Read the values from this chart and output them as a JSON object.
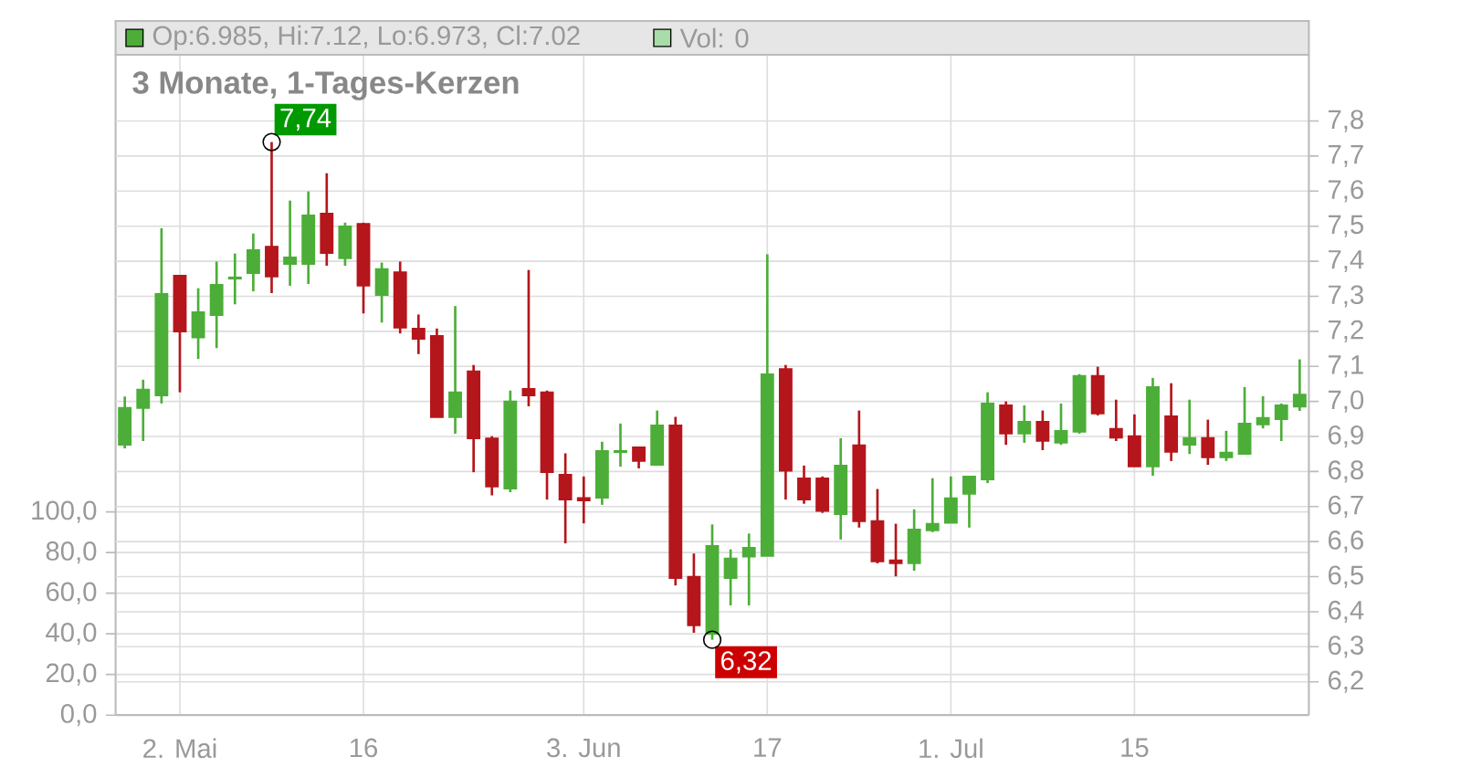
{
  "chart_data": {
    "type": "candlestick",
    "title": "3 Monate, 1-Tages-Kerzen",
    "annotations": [
      "Op:6.985, Hi:7.12, Lo:6.973, Cl:7.02",
      "Vol: 0",
      "7,74",
      "6,32"
    ],
    "categories": [
      null,
      null,
      null,
      "2. Mai",
      null,
      null,
      null,
      null,
      null,
      null,
      null,
      null,
      null,
      "16",
      null,
      null,
      null,
      null,
      null,
      null,
      null,
      null,
      null,
      null,
      null,
      "3. Jun",
      null,
      null,
      null,
      null,
      null,
      null,
      null,
      null,
      null,
      "17",
      null,
      null,
      null,
      null,
      null,
      null,
      null,
      null,
      null,
      "1. Jul",
      null,
      null,
      null,
      null,
      null,
      null,
      null,
      null,
      null,
      "15",
      null,
      null,
      null,
      null,
      null,
      null,
      null,
      null,
      null
    ],
    "ohlc": [
      [
        6.876,
        7.014,
        6.866,
        6.982
      ],
      [
        6.981,
        7.062,
        6.887,
        7.034
      ],
      [
        7.017,
        7.494,
        6.994,
        7.307
      ],
      [
        7.359,
        7.359,
        7.026,
        7.199
      ],
      [
        7.182,
        7.323,
        7.121,
        7.255
      ],
      [
        7.246,
        7.399,
        7.152,
        7.333
      ],
      [
        7.35,
        7.422,
        7.277,
        7.354
      ],
      [
        7.366,
        7.479,
        7.314,
        7.432
      ],
      [
        7.442,
        7.74,
        7.309,
        7.356
      ],
      [
        7.392,
        7.573,
        7.33,
        7.411
      ],
      [
        7.392,
        7.599,
        7.335,
        7.531
      ],
      [
        7.536,
        7.651,
        7.387,
        7.423
      ],
      [
        7.408,
        7.51,
        7.387,
        7.5
      ],
      [
        7.507,
        7.51,
        7.251,
        7.33
      ],
      [
        7.303,
        7.396,
        7.225,
        7.378
      ],
      [
        7.369,
        7.399,
        7.194,
        7.21
      ],
      [
        7.208,
        7.248,
        7.135,
        7.178
      ],
      [
        7.187,
        7.208,
        6.955,
        6.955
      ],
      [
        6.955,
        7.272,
        6.908,
        7.026
      ],
      [
        7.086,
        7.104,
        6.798,
        6.894
      ],
      [
        6.895,
        6.901,
        6.732,
        6.757
      ],
      [
        6.751,
        7.031,
        6.741,
        7.0
      ],
      [
        7.036,
        7.375,
        6.986,
        7.017
      ],
      [
        7.026,
        7.031,
        6.72,
        6.798
      ],
      [
        6.791,
        6.852,
        6.595,
        6.72
      ],
      [
        6.725,
        6.786,
        6.652,
        6.717
      ],
      [
        6.725,
        6.885,
        6.705,
        6.859
      ],
      [
        6.855,
        6.937,
        6.814,
        6.859
      ],
      [
        6.869,
        6.869,
        6.809,
        6.83
      ],
      [
        6.819,
        6.974,
        6.819,
        6.932
      ],
      [
        6.932,
        6.956,
        6.475,
        6.496
      ],
      [
        6.5,
        6.566,
        6.34,
        6.361
      ],
      [
        6.336,
        6.649,
        6.32,
        6.588
      ],
      [
        6.496,
        6.578,
        6.418,
        6.552
      ],
      [
        6.557,
        6.623,
        6.418,
        6.583
      ],
      [
        6.559,
        7.42,
        6.559,
        7.078
      ],
      [
        7.093,
        7.104,
        6.72,
        6.802
      ],
      [
        6.781,
        6.817,
        6.708,
        6.72
      ],
      [
        6.781,
        6.786,
        6.682,
        6.687
      ],
      [
        6.678,
        6.895,
        6.606,
        6.817
      ],
      [
        6.875,
        6.974,
        6.64,
        6.658
      ],
      [
        6.659,
        6.75,
        6.538,
        6.543
      ],
      [
        6.547,
        6.651,
        6.501,
        6.538
      ],
      [
        6.538,
        6.692,
        6.517,
        6.635
      ],
      [
        6.632,
        6.781,
        6.627,
        6.651
      ],
      [
        6.653,
        6.786,
        6.653,
        6.724
      ],
      [
        6.736,
        6.786,
        6.64,
        6.786
      ],
      [
        6.777,
        7.026,
        6.767,
        6.994
      ],
      [
        6.989,
        7.0,
        6.876,
        6.908
      ],
      [
        6.908,
        6.989,
        6.882,
        6.942
      ],
      [
        6.942,
        6.974,
        6.861,
        6.887
      ],
      [
        6.882,
        6.994,
        6.876,
        6.916
      ],
      [
        6.913,
        7.078,
        6.908,
        7.073
      ],
      [
        7.073,
        7.099,
        6.96,
        6.965
      ],
      [
        6.922,
        7.005,
        6.887,
        6.896
      ],
      [
        6.901,
        6.963,
        6.814,
        6.814
      ],
      [
        6.814,
        7.067,
        6.788,
        7.041
      ],
      [
        6.958,
        7.052,
        6.83,
        6.856
      ],
      [
        6.876,
        7.005,
        6.85,
        6.896
      ],
      [
        6.896,
        6.948,
        6.819,
        6.84
      ],
      [
        6.84,
        6.916,
        6.83,
        6.854
      ],
      [
        6.85,
        7.041,
        6.85,
        6.937
      ],
      [
        6.934,
        7.015,
        6.923,
        6.953
      ],
      [
        6.949,
        6.994,
        6.887,
        6.989
      ],
      [
        6.985,
        7.12,
        6.973,
        7.02
      ]
    ],
    "colors": [
      "#4cae38",
      "#4cae38",
      "#4cae38",
      "#b5161b",
      "#4cae38",
      "#4cae38",
      "#4cae38",
      "#4cae38",
      "#b5161b",
      "#4cae38",
      "#4cae38",
      "#b5161b",
      "#4cae38",
      "#b5161b",
      "#4cae38",
      "#b5161b",
      "#b5161b",
      "#b5161b",
      "#4cae38",
      "#b5161b",
      "#b5161b",
      "#4cae38",
      "#b5161b",
      "#b5161b",
      "#b5161b",
      "#b5161b",
      "#4cae38",
      "#4cae38",
      "#b5161b",
      "#4cae38",
      "#b5161b",
      "#b5161b",
      "#4cae38",
      "#4cae38",
      "#4cae38",
      "#4cae38",
      "#b5161b",
      "#b5161b",
      "#b5161b",
      "#4cae38",
      "#b5161b",
      "#b5161b",
      "#b5161b",
      "#4cae38",
      "#4cae38",
      "#4cae38",
      "#4cae38",
      "#4cae38",
      "#b5161b",
      "#4cae38",
      "#b5161b",
      "#4cae38",
      "#4cae38",
      "#b5161b",
      "#b5161b",
      "#b5161b",
      "#4cae38",
      "#b5161b",
      "#4cae38",
      "#b5161b",
      "#4cae38",
      "#4cae38",
      "#4cae38",
      "#4cae38",
      "#4cae38"
    ],
    "ylim": [
      6.105,
      7.989
    ],
    "yticks": [
      {
        "value": 6.2,
        "label": "6,2"
      },
      {
        "value": 6.3,
        "label": "6,3"
      },
      {
        "value": 6.4,
        "label": "6,4"
      },
      {
        "value": 6.5,
        "label": "6,5"
      },
      {
        "value": 6.6,
        "label": "6,6"
      },
      {
        "value": 6.7,
        "label": "6,7"
      },
      {
        "value": 6.8,
        "label": "6,8"
      },
      {
        "value": 6.9,
        "label": "6,9"
      },
      {
        "value": 7.0,
        "label": "7,0"
      },
      {
        "value": 7.1,
        "label": "7,1"
      },
      {
        "value": 7.2,
        "label": "7,2"
      },
      {
        "value": 7.3,
        "label": "7,3"
      },
      {
        "value": 7.4,
        "label": "7,4"
      },
      {
        "value": 7.5,
        "label": "7,5"
      },
      {
        "value": 7.6,
        "label": "7,6"
      },
      {
        "value": 7.7,
        "label": "7,7"
      },
      {
        "value": 7.8,
        "label": "7,8"
      }
    ],
    "y2lim": [
      0,
      325
    ],
    "y2ticks": [
      {
        "value": 0,
        "label": "0,0"
      },
      {
        "value": 20,
        "label": "20,0"
      },
      {
        "value": 40,
        "label": "40,0"
      },
      {
        "value": 60,
        "label": "60,0"
      },
      {
        "value": 80,
        "label": "80,0"
      },
      {
        "value": 100,
        "label": "100,0"
      }
    ],
    "grid": true
  }
}
